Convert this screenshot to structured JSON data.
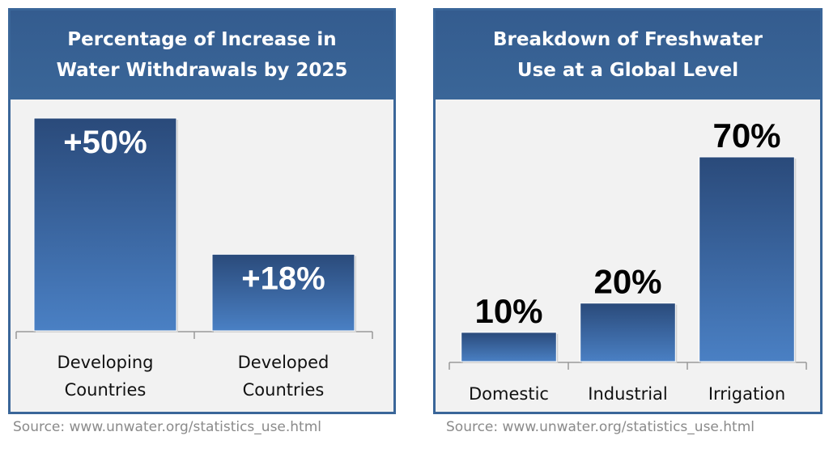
{
  "chart_data": [
    {
      "type": "bar",
      "title": [
        "Percentage of Increase in",
        "Water Withdrawals by 2025"
      ],
      "categories": [
        [
          "Developing",
          "Countries"
        ],
        [
          "Developed",
          "Countries"
        ]
      ],
      "values": [
        50,
        18
      ],
      "data_labels": [
        "+50%",
        "+18%"
      ],
      "label_position": "inside-top",
      "ylim": [
        0,
        50
      ],
      "grid": false,
      "source": "Source: www.unwater.org/statistics_use.html"
    },
    {
      "type": "bar",
      "title": [
        "Breakdown of Freshwater",
        "Use at a Global Level"
      ],
      "categories": [
        [
          "Domestic"
        ],
        [
          "Industrial"
        ],
        [
          "Irrigation"
        ]
      ],
      "values": [
        10,
        20,
        70
      ],
      "data_labels": [
        "10%",
        "20%",
        "70%"
      ],
      "label_position": "above",
      "ylim": [
        0,
        70
      ],
      "grid": false,
      "source": "Source: www.unwater.org/statistics_use.html"
    }
  ],
  "colors": {
    "header": "#365f91",
    "panel_bg": "#f2f2f2",
    "bar_top": "#2a4a7a",
    "bar_bottom": "#4a80c4",
    "source_text": "#8a8a8a"
  }
}
